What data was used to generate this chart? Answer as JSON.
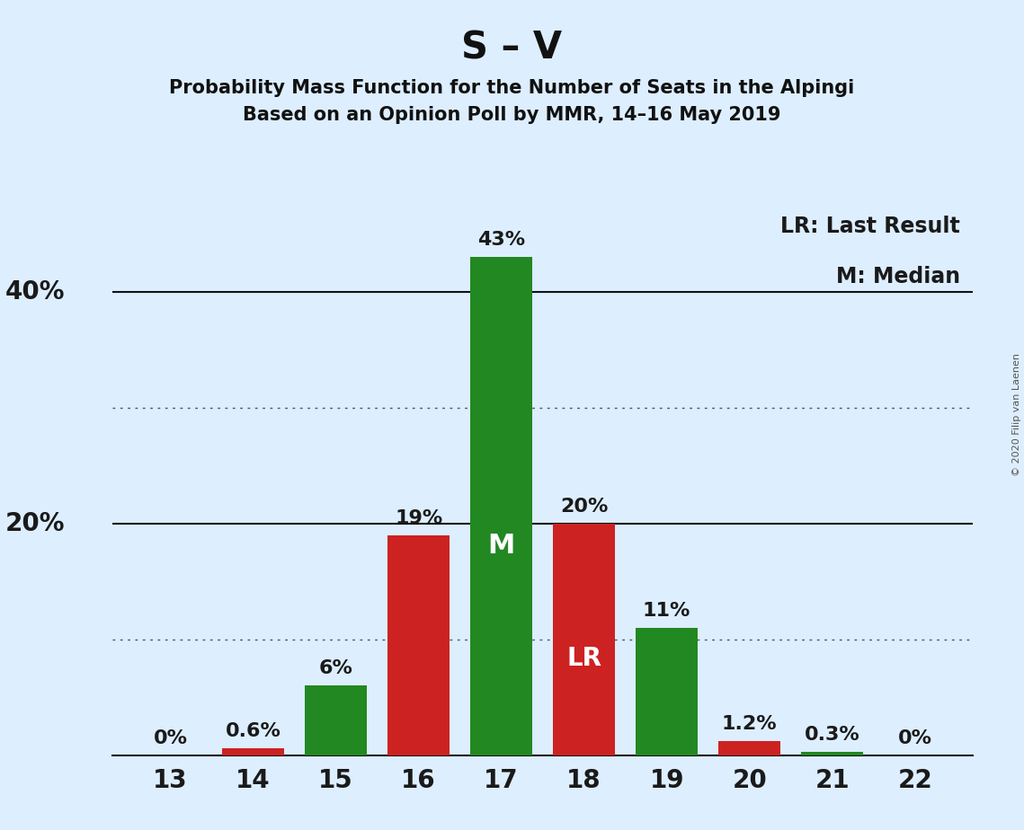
{
  "title": "S – V",
  "subtitle1": "Probability Mass Function for the Number of Seats in the Alpingi",
  "subtitle2": "Based on an Opinion Poll by MMR, 14–16 May 2019",
  "copyright": "© 2020 Filip van Laenen",
  "seats": [
    13,
    14,
    15,
    16,
    17,
    18,
    19,
    20,
    21,
    22
  ],
  "values": [
    0.0,
    0.6,
    6.0,
    19.0,
    43.0,
    20.0,
    11.0,
    1.2,
    0.3,
    0.0
  ],
  "bar_colors": [
    "#cc2222",
    "#cc2222",
    "#228822",
    "#cc2222",
    "#228822",
    "#cc2222",
    "#228822",
    "#cc2222",
    "#228822",
    "#228822"
  ],
  "median_seat": 17,
  "last_result_seat": 18,
  "label_lr": "LR",
  "label_m": "M",
  "legend_lr": "LR: Last Result",
  "legend_m": "M: Median",
  "background_color": "#ddeeff",
  "bar_color_green": "#228822",
  "bar_color_red": "#cc2222",
  "solid_ylines": [
    20,
    40
  ],
  "dotted_ylines": [
    10,
    30
  ],
  "ylabel_labels": [
    "20%",
    "40%"
  ],
  "ylabel_values": [
    20,
    40
  ]
}
